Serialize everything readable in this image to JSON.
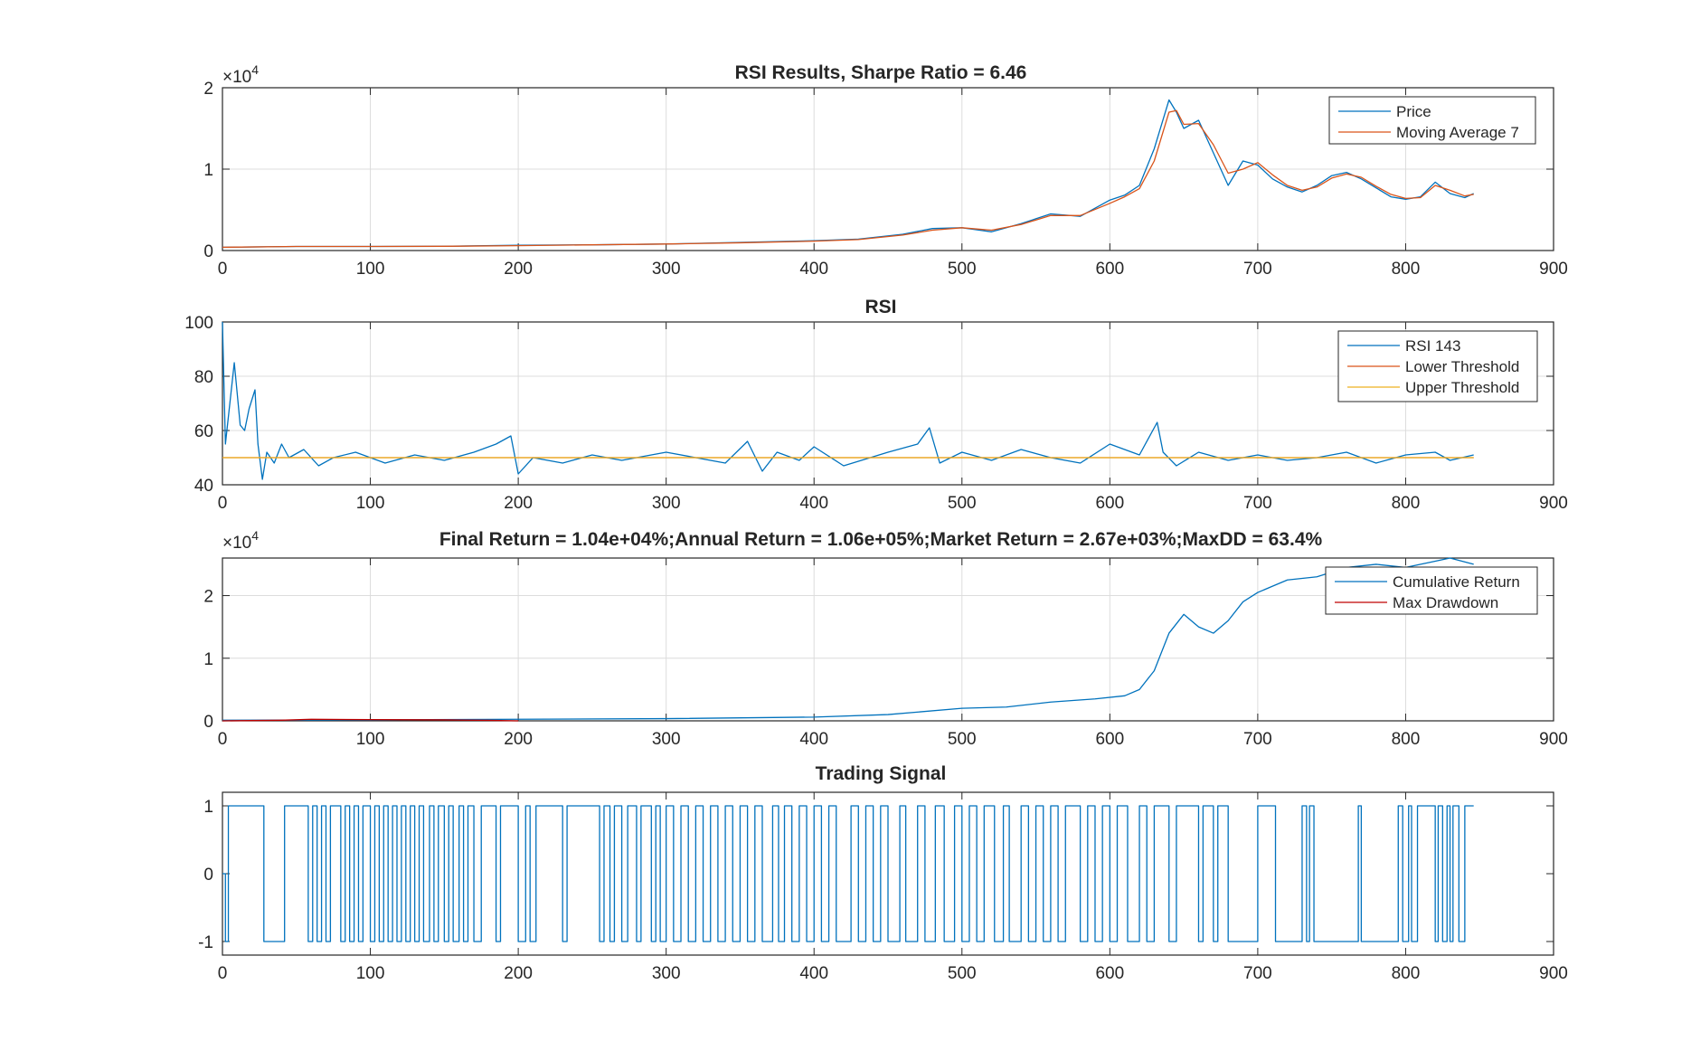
{
  "colors": {
    "series_blue": "#0072BD",
    "series_orange": "#D95319",
    "series_yellow": "#EDB120",
    "series_red": "#C00000",
    "axis": "#262626",
    "grid": "#dcdcdc"
  },
  "chart_data": [
    {
      "type": "line",
      "title": "RSI Results, Sharpe Ratio = 6.46",
      "xlabel": "",
      "ylabel": "",
      "xlim": [
        0,
        900
      ],
      "ylim": [
        0,
        20000
      ],
      "xticks": [
        "0",
        "100",
        "200",
        "300",
        "400",
        "500",
        "600",
        "700",
        "800",
        "900"
      ],
      "yticks": [
        "0",
        "1",
        "2"
      ],
      "exponent": "×10^4",
      "grid": true,
      "legend_position": "top-right",
      "series": [
        {
          "name": "Price",
          "color": "#0072BD",
          "x": [
            0,
            50,
            100,
            150,
            200,
            250,
            300,
            350,
            400,
            430,
            460,
            480,
            500,
            520,
            540,
            560,
            580,
            600,
            610,
            620,
            630,
            640,
            645,
            650,
            660,
            670,
            680,
            690,
            700,
            710,
            720,
            730,
            740,
            750,
            760,
            770,
            780,
            790,
            800,
            810,
            820,
            830,
            840,
            846
          ],
          "values": [
            400,
            500,
            500,
            520,
            650,
            700,
            800,
            1000,
            1200,
            1400,
            2000,
            2700,
            2800,
            2300,
            3300,
            4500,
            4200,
            6200,
            6800,
            8000,
            12500,
            18500,
            17000,
            15000,
            16000,
            12000,
            8000,
            11000,
            10500,
            8800,
            7800,
            7200,
            8000,
            9200,
            9600,
            8800,
            7700,
            6600,
            6300,
            6600,
            8400,
            7000,
            6500,
            7000
          ]
        },
        {
          "name": "Moving Average 7",
          "color": "#D95319",
          "x": [
            0,
            50,
            100,
            150,
            200,
            250,
            300,
            350,
            400,
            430,
            460,
            480,
            500,
            520,
            540,
            560,
            580,
            600,
            610,
            620,
            630,
            640,
            645,
            650,
            660,
            670,
            680,
            690,
            700,
            710,
            720,
            730,
            740,
            750,
            760,
            770,
            780,
            790,
            800,
            810,
            820,
            830,
            840,
            846
          ],
          "values": [
            400,
            500,
            500,
            520,
            600,
            700,
            800,
            950,
            1150,
            1350,
            1900,
            2500,
            2800,
            2500,
            3200,
            4300,
            4300,
            5800,
            6600,
            7600,
            11000,
            17000,
            17200,
            15500,
            15600,
            13000,
            9500,
            10000,
            10800,
            9300,
            8000,
            7400,
            7800,
            8900,
            9400,
            9000,
            7900,
            6900,
            6400,
            6500,
            8000,
            7400,
            6700,
            6900
          ]
        }
      ]
    },
    {
      "type": "line",
      "title": "RSI",
      "xlabel": "",
      "ylabel": "",
      "xlim": [
        0,
        900
      ],
      "ylim": [
        40,
        100
      ],
      "xticks": [
        "0",
        "100",
        "200",
        "300",
        "400",
        "500",
        "600",
        "700",
        "800",
        "900"
      ],
      "yticks": [
        "40",
        "60",
        "80",
        "100"
      ],
      "grid": true,
      "legend_position": "top-right",
      "series": [
        {
          "name": "RSI 143",
          "color": "#0072BD",
          "x": [
            0,
            2,
            5,
            8,
            12,
            15,
            18,
            22,
            24,
            27,
            30,
            35,
            40,
            45,
            55,
            65,
            75,
            90,
            110,
            130,
            150,
            170,
            185,
            195,
            200,
            210,
            230,
            250,
            270,
            300,
            320,
            340,
            355,
            365,
            375,
            390,
            400,
            420,
            450,
            470,
            478,
            485,
            500,
            520,
            540,
            560,
            580,
            600,
            620,
            632,
            636,
            645,
            660,
            680,
            700,
            720,
            740,
            760,
            780,
            800,
            820,
            830,
            846
          ],
          "values": [
            100,
            55,
            70,
            85,
            62,
            60,
            68,
            75,
            55,
            42,
            52,
            48,
            55,
            50,
            53,
            47,
            50,
            52,
            48,
            51,
            49,
            52,
            55,
            58,
            44,
            50,
            48,
            51,
            49,
            52,
            50,
            48,
            56,
            45,
            52,
            49,
            54,
            47,
            52,
            55,
            61,
            48,
            52,
            49,
            53,
            50,
            48,
            55,
            51,
            63,
            52,
            47,
            52,
            49,
            51,
            49,
            50,
            52,
            48,
            51,
            52,
            49,
            51
          ]
        },
        {
          "name": "Lower Threshold",
          "color": "#D95319",
          "x": [
            0,
            846
          ],
          "values": [
            50,
            50
          ]
        },
        {
          "name": "Upper Threshold",
          "color": "#EDB120",
          "x": [
            0,
            846
          ],
          "values": [
            50,
            50
          ]
        }
      ]
    },
    {
      "type": "line",
      "title": "Final Return = 1.04e+04%;Annual Return = 1.06e+05%;Market Return = 2.67e+03%;MaxDD = 63.4%",
      "xlabel": "",
      "ylabel": "",
      "xlim": [
        0,
        900
      ],
      "ylim": [
        0,
        26000
      ],
      "xticks": [
        "0",
        "100",
        "200",
        "300",
        "400",
        "500",
        "600",
        "700",
        "800",
        "900"
      ],
      "yticks": [
        "0",
        "1",
        "2"
      ],
      "exponent": "×10^4",
      "grid": true,
      "legend_position": "top-right",
      "series": [
        {
          "name": "Cumulative Return",
          "color": "#0072BD",
          "x": [
            0,
            100,
            200,
            300,
            400,
            450,
            500,
            530,
            560,
            590,
            610,
            620,
            630,
            640,
            650,
            660,
            670,
            680,
            690,
            700,
            710,
            720,
            740,
            760,
            780,
            800,
            820,
            830,
            846
          ],
          "values": [
            100,
            150,
            250,
            350,
            600,
            1000,
            2000,
            2200,
            3000,
            3500,
            4000,
            5000,
            8000,
            14000,
            17000,
            15000,
            14000,
            16000,
            19000,
            20500,
            21500,
            22500,
            23000,
            24500,
            25000,
            24500,
            25500,
            26000,
            25000
          ]
        },
        {
          "name": "Max Drawdown",
          "color": "#C00000",
          "x": [
            0,
            40,
            60,
            100,
            150,
            180,
            200
          ],
          "values": [
            0,
            100,
            250,
            200,
            150,
            80,
            0
          ]
        }
      ]
    },
    {
      "type": "line",
      "title": "Trading Signal",
      "xlabel": "",
      "ylabel": "",
      "xlim": [
        0,
        900
      ],
      "ylim": [
        -1.2,
        1.2
      ],
      "xticks": [
        "0",
        "100",
        "200",
        "300",
        "400",
        "500",
        "600",
        "700",
        "800",
        "900"
      ],
      "yticks": [
        "-1",
        "0",
        "1"
      ],
      "grid": false,
      "series": [
        {
          "name": "",
          "color": "#0072BD",
          "x": [
            0,
            2,
            4,
            25,
            28,
            40,
            42,
            58,
            61,
            64,
            67,
            70,
            73,
            80,
            83,
            86,
            89,
            92,
            95,
            100,
            103,
            106,
            109,
            112,
            115,
            118,
            121,
            124,
            127,
            130,
            133,
            136,
            140,
            143,
            146,
            150,
            153,
            156,
            160,
            163,
            166,
            170,
            175,
            185,
            188,
            200,
            205,
            208,
            212,
            230,
            233,
            255,
            258,
            262,
            265,
            270,
            274,
            280,
            283,
            290,
            293,
            296,
            300,
            305,
            310,
            315,
            320,
            325,
            330,
            335,
            340,
            345,
            350,
            355,
            360,
            365,
            372,
            376,
            380,
            385,
            390,
            395,
            400,
            405,
            410,
            415,
            425,
            430,
            435,
            440,
            445,
            450,
            458,
            462,
            470,
            475,
            482,
            488,
            495,
            500,
            505,
            510,
            515,
            522,
            528,
            532,
            540,
            545,
            550,
            555,
            560,
            565,
            570,
            580,
            585,
            590,
            595,
            600,
            605,
            612,
            620,
            625,
            630,
            640,
            645,
            660,
            663,
            670,
            673,
            680,
            700,
            712,
            730,
            733,
            735,
            738,
            768,
            770,
            795,
            798,
            802,
            804,
            808,
            820,
            822,
            825,
            828,
            830,
            832,
            836,
            840,
            846
          ],
          "values": [
            0,
            -1,
            1,
            1,
            -1,
            -1,
            1,
            -1,
            1,
            -1,
            1,
            -1,
            1,
            -1,
            1,
            -1,
            1,
            -1,
            1,
            -1,
            1,
            -1,
            1,
            -1,
            1,
            -1,
            1,
            -1,
            1,
            -1,
            1,
            -1,
            1,
            -1,
            1,
            -1,
            1,
            -1,
            1,
            -1,
            1,
            -1,
            1,
            -1,
            1,
            -1,
            1,
            -1,
            1,
            -1,
            1,
            -1,
            1,
            -1,
            1,
            -1,
            1,
            -1,
            1,
            -1,
            1,
            -1,
            1,
            -1,
            1,
            -1,
            1,
            -1,
            1,
            -1,
            1,
            -1,
            1,
            -1,
            1,
            -1,
            1,
            -1,
            1,
            -1,
            1,
            -1,
            1,
            -1,
            1,
            -1,
            1,
            -1,
            1,
            -1,
            1,
            -1,
            1,
            -1,
            1,
            -1,
            1,
            -1,
            1,
            -1,
            1,
            -1,
            1,
            -1,
            1,
            -1,
            1,
            -1,
            1,
            -1,
            1,
            -1,
            1,
            -1,
            1,
            -1,
            1,
            -1,
            1,
            -1,
            1,
            -1,
            1,
            -1,
            1,
            -1,
            1,
            -1,
            1,
            -1,
            1,
            -1,
            1,
            -1,
            1,
            -1,
            1,
            -1,
            1,
            -1,
            1,
            -1,
            1,
            -1,
            1,
            -1,
            1,
            -1,
            1,
            -1,
            1,
            1
          ]
        }
      ]
    }
  ]
}
